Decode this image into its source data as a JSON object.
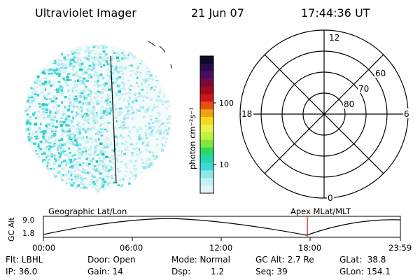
{
  "title": {
    "instrument": "Ultraviolet Imager",
    "date": "21 Jun 07",
    "time": "17:44:36 UT"
  },
  "colorbar": {
    "label": "photon cm⁻²s⁻¹",
    "ticks": [
      "100",
      "10"
    ],
    "colors": [
      "#0b0b2a",
      "#2a0d4a",
      "#4a1060",
      "#7a0a3a",
      "#a50a1a",
      "#d0141c",
      "#e85010",
      "#f5a010",
      "#f7d820",
      "#e9f04a",
      "#bff23c",
      "#7ee640",
      "#2fd860",
      "#22d8b0",
      "#3ad8d8",
      "#8ee6ee",
      "#c4eef2",
      "#e2f4f4"
    ]
  },
  "polar_plot": {
    "mlt_labels": {
      "top": "12",
      "left": "18",
      "right": "6",
      "bottom": "0"
    },
    "lat_labels": [
      "60",
      "70",
      "80"
    ]
  },
  "timeline": {
    "ylabel": "GC Alt",
    "y_ticks": [
      "9.0",
      "1.8"
    ],
    "left_header": "Geographic Lat/Lon",
    "right_header": "Apex  MLat/MLT",
    "x_ticks": [
      "00:00",
      "06:00",
      "12:00",
      "18:00",
      "23:59"
    ],
    "marker_time_hours": 17.7455,
    "marker_color": "#d02020"
  },
  "status": {
    "flt": "Flt: LBHL",
    "ip": "IP: 36.0",
    "door": "Door: Open",
    "gain": "Gain: 14",
    "mode": "Mode: Normal",
    "dsp_label": "Dsp:",
    "dsp_value": "1.2",
    "gc_alt": "GC Alt: 2.7 Re",
    "seq": "Seq: 39",
    "glat": "GLat:  38.8",
    "glon": "GLon: 154.1"
  },
  "image_colors": {
    "pale": "#c8eef0",
    "light": "#8fe4ec",
    "cyan": "#3cd4d4",
    "teal": "#20c8a8"
  }
}
